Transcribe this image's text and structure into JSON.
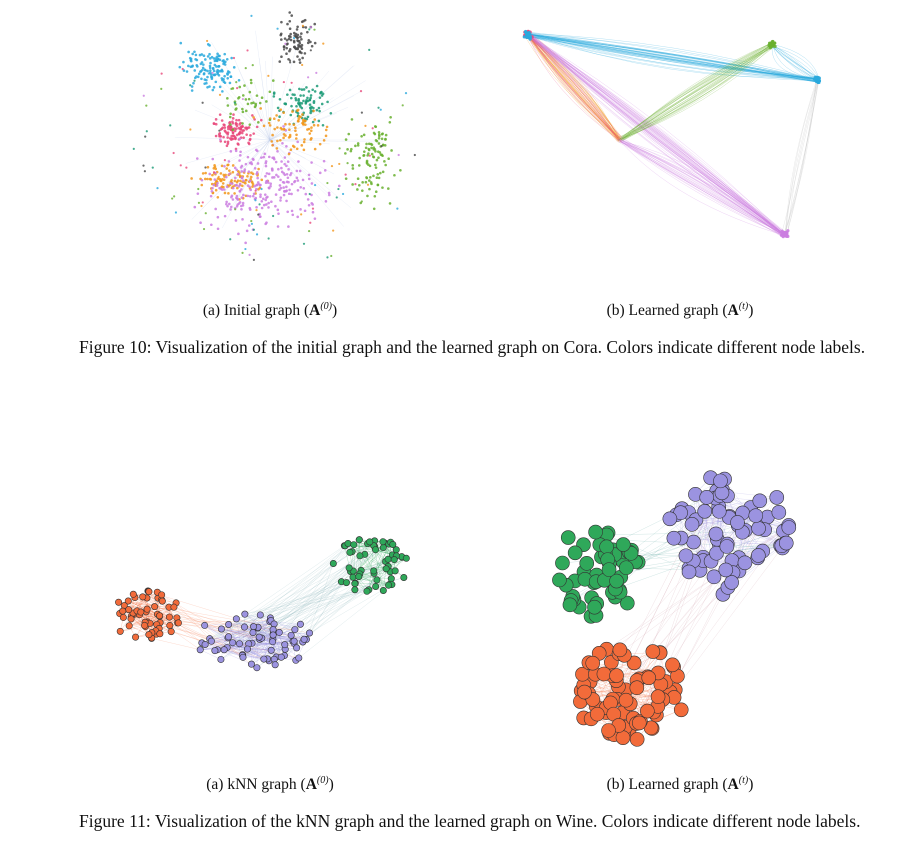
{
  "figure10": {
    "panel_a_label": "(a) Initial graph",
    "panel_a_math": "A",
    "panel_a_sup": "(0)",
    "panel_b_label": "(b) Learned graph",
    "panel_b_math": "A",
    "panel_b_sup": "(t)",
    "caption": "Figure 10: Visualization of the initial graph and the learned graph on Cora. Colors indicate different node labels."
  },
  "figure11": {
    "panel_a_label": "(a) kNN graph",
    "panel_a_math": "A",
    "panel_a_sup": "(0)",
    "panel_b_label": "(b) Learned graph",
    "panel_b_math": "A",
    "panel_b_sup": "(t)",
    "caption": "Figure 11: Visualization of the kNN graph and the learned graph on Wine. Colors indicate different node labels."
  },
  "colors": {
    "cora": [
      "#29a9dd",
      "#4a4a4a",
      "#f2961b",
      "#e9487a",
      "#1a9a76",
      "#69b02f",
      "#cb7ee0"
    ],
    "wine_orange": "#f26b3a",
    "wine_purple": "#9b93e0",
    "wine_green": "#2fa85a"
  }
}
